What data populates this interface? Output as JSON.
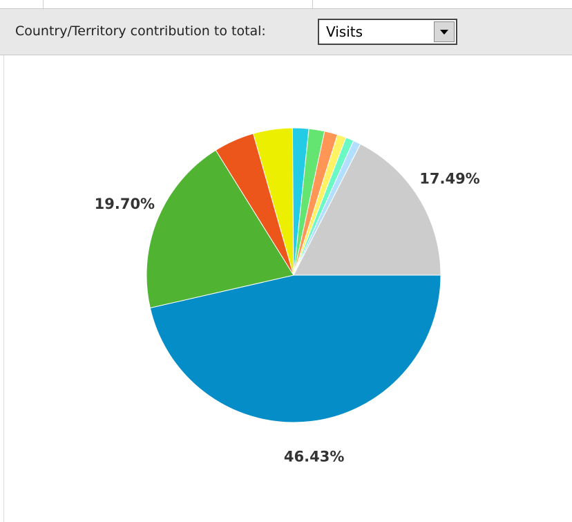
{
  "toolbar": {
    "label": "Country/Territory contribution to total:",
    "select": "Visits"
  },
  "chart_data": {
    "type": "pie",
    "values": [
      46.43,
      19.7,
      4.45,
      4.3,
      1.78,
      1.72,
      1.44,
      0.97,
      0.89,
      0.83,
      17.49
    ],
    "value_labels": [
      "46.43%",
      "19.70%",
      null,
      null,
      null,
      null,
      null,
      null,
      null,
      null,
      "17.49%"
    ],
    "colors": [
      "#058dc7",
      "#50b432",
      "#ed561b",
      "#edef00",
      "#24cbe5",
      "#64e572",
      "#ff9655",
      "#fff263",
      "#6af9c4",
      "#b2deff",
      "#cccccc"
    ]
  }
}
